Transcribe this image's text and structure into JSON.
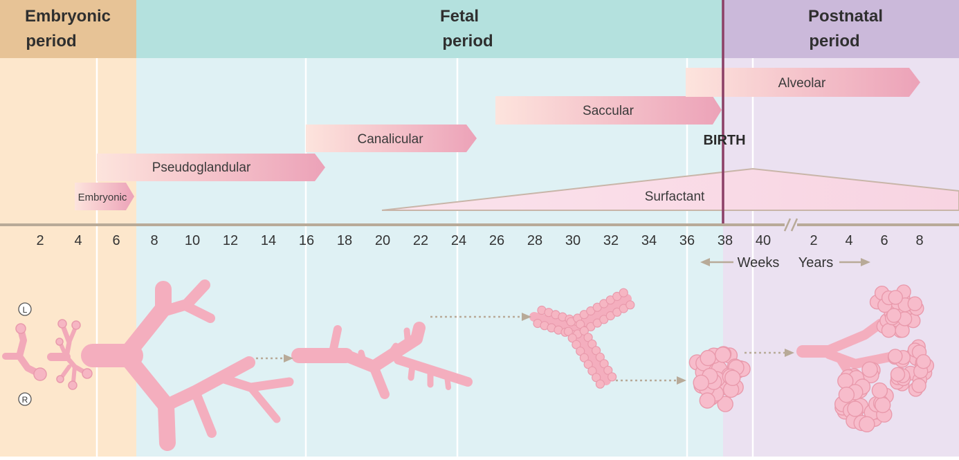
{
  "periods": {
    "embryonic": {
      "line1": "Embryonic",
      "line2": "period"
    },
    "fetal": {
      "line1": "Fetal",
      "line2": "period"
    },
    "postnatal": {
      "line1": "Postnatal",
      "line2": "period"
    }
  },
  "stages": [
    {
      "label": "Embryonic",
      "start_week": 4,
      "end_week": 7
    },
    {
      "label": "Pseudoglandular",
      "start_week": 5,
      "end_week": 17
    },
    {
      "label": "Canalicular",
      "start_week": 16,
      "end_week": 25
    },
    {
      "label": "Saccular",
      "start_week": 26,
      "end_week": 38
    },
    {
      "label": "Alveolar",
      "start_week": 36,
      "end_week": "8 years"
    }
  ],
  "birth": {
    "label": "BIRTH",
    "week": 38
  },
  "surfactant": {
    "label": "Surfactant",
    "start_week": 20,
    "peak_week": 39.5
  },
  "axis": {
    "week_ticks": [
      "2",
      "4",
      "6",
      "8",
      "10",
      "12",
      "14",
      "16",
      "18",
      "20",
      "22",
      "24",
      "26",
      "28",
      "30",
      "32",
      "34",
      "36",
      "38",
      "40"
    ],
    "year_ticks": [
      "2",
      "4",
      "6",
      "8"
    ],
    "weeks_label": "Weeks",
    "years_label": "Years"
  },
  "orientation": {
    "left": "L",
    "right": "R"
  },
  "colors": {
    "embryonic_bg": "#fde7cc",
    "embryonic_header": "#e7c396",
    "fetal_bg": "#dff1f4",
    "fetal_header": "#b4e1de",
    "postnatal_bg": "#ebe1f1",
    "postnatal_header": "#cbb9da",
    "stage_arrow_light": "#fde1dc",
    "stage_arrow_dark": "#eca6ba",
    "birth_line": "#8c3f66",
    "lung_pink": "#f6b6c3",
    "axis": "#b8aa98"
  }
}
